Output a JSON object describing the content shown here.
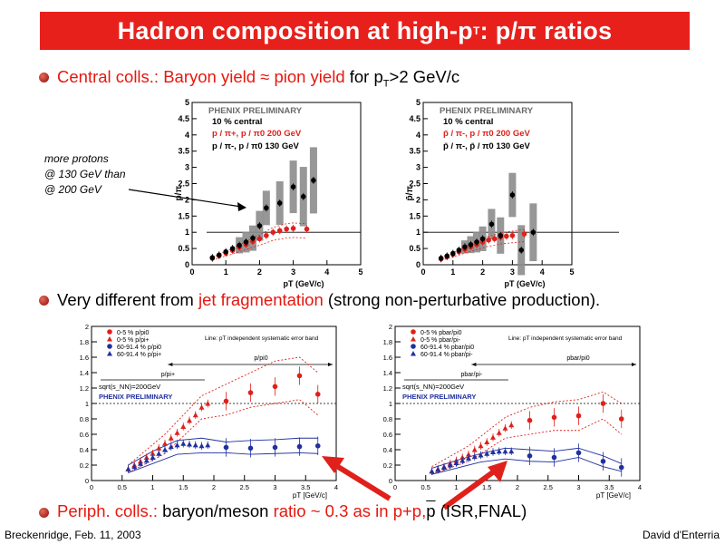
{
  "title": {
    "main": "Hadron composition at high-p",
    "sub": "T",
    "rest": " : p/π ratios"
  },
  "bullets": {
    "b1": {
      "red": "Central colls.: Baryon yield  ≈ pion yield",
      "black_pre": "  for p",
      "sub": "T",
      "black_post": ">2 GeV/c"
    },
    "b2": {
      "pre": "Very different from ",
      "red": "jet fragmentation",
      "post": " (strong non-perturbative production)."
    },
    "b3": {
      "red_pre": "Periph. colls.:",
      "black1": " baryon/meson ",
      "red2": "ratio ~ 0.3 as in p+p,",
      "pbar": "p",
      "black2": " (ISR,FNAL)"
    }
  },
  "annotation": {
    "line1": "more protons",
    "line2": "@ 130 GeV than",
    "line3": "@ 200 GeV"
  },
  "footer": {
    "left": "Breckenridge, Feb. 11, 2003",
    "right": "David d'Enterria"
  },
  "colors": {
    "accent": "#e8201c",
    "series_red": "#e0201a",
    "series_blue": "#2030a0",
    "band": "#8c8c8c"
  },
  "chart_data": [
    {
      "type": "scatter",
      "title": "",
      "header": "PHENIX PRELIMINARY",
      "legend": [
        "10 % central",
        "p / π+, p / π0   200 GeV",
        "p / π-, p / π0   130 GeV"
      ],
      "xlabel": "pT (GeV/c)",
      "ylabel": "p/π",
      "xlim": [
        0,
        5
      ],
      "ylim": [
        0,
        5
      ],
      "xticks": [
        "0",
        "1",
        "2",
        "3",
        "4",
        "5"
      ],
      "yticks": [
        "0",
        "0.5",
        "1",
        "1.5",
        "2",
        "2.5",
        "3",
        "3.5",
        "4",
        "4.5",
        "5"
      ],
      "series": [
        {
          "name": "p / π+, p / π0   200 GeV",
          "color": "#e0201a",
          "x": [
            0.6,
            0.8,
            1.0,
            1.2,
            1.4,
            1.6,
            1.8,
            2.0,
            2.2,
            2.4,
            2.6,
            2.8,
            3.0,
            3.4
          ],
          "y": [
            0.2,
            0.28,
            0.36,
            0.44,
            0.54,
            0.62,
            0.72,
            0.8,
            0.9,
            1.0,
            1.05,
            1.1,
            1.12,
            1.1
          ]
        },
        {
          "name": "p / π-, p / π0   130 GeV",
          "color": "#000000",
          "x": [
            0.6,
            0.8,
            1.0,
            1.2,
            1.4,
            1.6,
            1.8,
            2.0,
            2.2,
            2.6,
            3.0,
            3.3,
            3.6
          ],
          "y": [
            0.22,
            0.3,
            0.4,
            0.5,
            0.6,
            0.7,
            0.82,
            1.2,
            1.75,
            1.9,
            2.4,
            2.1,
            2.6
          ]
        }
      ]
    },
    {
      "type": "scatter",
      "title": "",
      "header": "PHENIX PRELIMINARY",
      "legend": [
        "10 % central",
        "p̄ / π-, p / π0   200 GeV",
        "p̄ / π-, p̄ / π0   130 GeV"
      ],
      "xlabel": "pT (GeV/c)",
      "ylabel": "p̄/π",
      "xlim": [
        0,
        5
      ],
      "ylim": [
        0,
        5
      ],
      "xticks": [
        "0",
        "1",
        "2",
        "3",
        "4",
        "5"
      ],
      "yticks": [
        "0",
        "0.5",
        "1",
        "1.5",
        "2",
        "2.5",
        "3",
        "3.5",
        "4",
        "4.5",
        "5"
      ],
      "series": [
        {
          "name": "p̄ / π-, p / π0   200 GeV",
          "color": "#e0201a",
          "x": [
            0.6,
            0.8,
            1.0,
            1.2,
            1.4,
            1.6,
            1.8,
            2.0,
            2.2,
            2.4,
            2.6,
            2.8,
            3.0,
            3.4
          ],
          "y": [
            0.18,
            0.25,
            0.32,
            0.4,
            0.48,
            0.55,
            0.62,
            0.7,
            0.76,
            0.8,
            0.85,
            0.88,
            0.9,
            0.95
          ]
        },
        {
          "name": "p̄ / π-, p̄ / π0   130 GeV",
          "color": "#000000",
          "x": [
            0.6,
            0.8,
            1.0,
            1.2,
            1.4,
            1.6,
            1.8,
            2.0,
            2.3,
            2.6,
            3.0,
            3.3,
            3.7
          ],
          "y": [
            0.2,
            0.27,
            0.35,
            0.45,
            0.55,
            0.62,
            0.7,
            0.8,
            1.25,
            0.9,
            2.15,
            0.45,
            1.0
          ]
        }
      ]
    },
    {
      "type": "scatter",
      "title": "",
      "legend": [
        "0-5 % p/pi0",
        "0-5 % p/pi+",
        "60-91.4 % p/pi0",
        "60-91.4 % p/pi+"
      ],
      "note": "Line: pT independent systematic error band",
      "labels": [
        "p/pi0",
        "p/pi+",
        "sqrt(s_NN)=200GeV",
        "PHENIX PRELIMINARY"
      ],
      "xlabel": "pT [GeV/c]",
      "ylabel": "",
      "xlim": [
        0,
        4
      ],
      "ylim": [
        0,
        2
      ],
      "xticks": [
        "0",
        "0.5",
        "1",
        "1.5",
        "2",
        "2.5",
        "3",
        "3.5",
        "4"
      ],
      "yticks": [
        "0",
        "0.2",
        "0.4",
        "0.6",
        "0.8",
        "1",
        "1.2",
        "1.4",
        "1.6",
        "1.8",
        "2"
      ],
      "series": [
        {
          "name": "0-5 % p/pi0",
          "color": "#e0201a",
          "marker": "circle",
          "x": [
            2.2,
            2.6,
            3.0,
            3.4,
            3.7
          ],
          "y": [
            1.03,
            1.14,
            1.22,
            1.36,
            1.12
          ]
        },
        {
          "name": "0-5 % p/pi+",
          "color": "#e0201a",
          "marker": "triangle",
          "x": [
            0.6,
            0.7,
            0.8,
            0.9,
            1.0,
            1.1,
            1.2,
            1.3,
            1.4,
            1.5,
            1.6,
            1.7,
            1.8,
            1.9
          ],
          "y": [
            0.15,
            0.2,
            0.25,
            0.3,
            0.35,
            0.42,
            0.48,
            0.55,
            0.62,
            0.7,
            0.78,
            0.85,
            0.95,
            1.0
          ]
        },
        {
          "name": "60-91.4 % p/pi0",
          "color": "#2030a0",
          "marker": "circle",
          "x": [
            2.2,
            2.6,
            3.0,
            3.4,
            3.7
          ],
          "y": [
            0.43,
            0.42,
            0.43,
            0.44,
            0.45
          ]
        },
        {
          "name": "60-91.4 % p/pi+",
          "color": "#2030a0",
          "marker": "triangle",
          "x": [
            0.6,
            0.7,
            0.8,
            0.9,
            1.0,
            1.1,
            1.2,
            1.3,
            1.4,
            1.5,
            1.6,
            1.7,
            1.8,
            1.9
          ],
          "y": [
            0.15,
            0.18,
            0.22,
            0.26,
            0.3,
            0.35,
            0.4,
            0.44,
            0.46,
            0.48,
            0.47,
            0.46,
            0.45,
            0.46
          ]
        }
      ]
    },
    {
      "type": "scatter",
      "title": "",
      "legend": [
        "0-5 % pbar/pi0",
        "0-5 % pbar/pi-",
        "60-91.4 % pbar/pi0",
        "60-91.4 % pbar/pi-"
      ],
      "note": "Line: pT independent systematic error band",
      "labels": [
        "pbar/pi0",
        "pbar/pi-",
        "sqrt(s_NN)=200GeV",
        "PHENIX PRELIMINARY"
      ],
      "xlabel": "pT [GeV/c]",
      "ylabel": "",
      "xlim": [
        0,
        4
      ],
      "ylim": [
        0,
        2
      ],
      "xticks": [
        "0",
        "0.5",
        "1",
        "1.5",
        "2",
        "2.5",
        "3",
        "3.5",
        "4"
      ],
      "yticks": [
        "0",
        "0.2",
        "0.4",
        "0.6",
        "0.8",
        "1",
        "1.2",
        "1.4",
        "1.6",
        "1.8",
        "2"
      ],
      "series": [
        {
          "name": "0-5 % pbar/pi0",
          "color": "#e0201a",
          "marker": "circle",
          "x": [
            2.2,
            2.6,
            3.0,
            3.4,
            3.7
          ],
          "y": [
            0.78,
            0.82,
            0.84,
            1.0,
            0.8
          ]
        },
        {
          "name": "0-5 % pbar/pi-",
          "color": "#e0201a",
          "marker": "triangle",
          "x": [
            0.6,
            0.7,
            0.8,
            0.9,
            1.0,
            1.1,
            1.2,
            1.3,
            1.4,
            1.5,
            1.6,
            1.7,
            1.8,
            1.9
          ],
          "y": [
            0.12,
            0.15,
            0.18,
            0.22,
            0.26,
            0.3,
            0.34,
            0.4,
            0.45,
            0.5,
            0.56,
            0.62,
            0.68,
            0.72
          ]
        },
        {
          "name": "60-91.4 % pbar/pi0",
          "color": "#2030a0",
          "marker": "circle",
          "x": [
            2.2,
            2.6,
            3.0,
            3.4,
            3.7
          ],
          "y": [
            0.32,
            0.3,
            0.36,
            0.25,
            0.17
          ]
        },
        {
          "name": "60-91.4 % pbar/pi-",
          "color": "#2030a0",
          "marker": "triangle",
          "x": [
            0.6,
            0.7,
            0.8,
            0.9,
            1.0,
            1.1,
            1.2,
            1.3,
            1.4,
            1.5,
            1.6,
            1.7,
            1.8,
            1.9
          ],
          "y": [
            0.12,
            0.14,
            0.17,
            0.2,
            0.23,
            0.26,
            0.29,
            0.31,
            0.33,
            0.35,
            0.37,
            0.38,
            0.38,
            0.38
          ]
        }
      ]
    }
  ]
}
